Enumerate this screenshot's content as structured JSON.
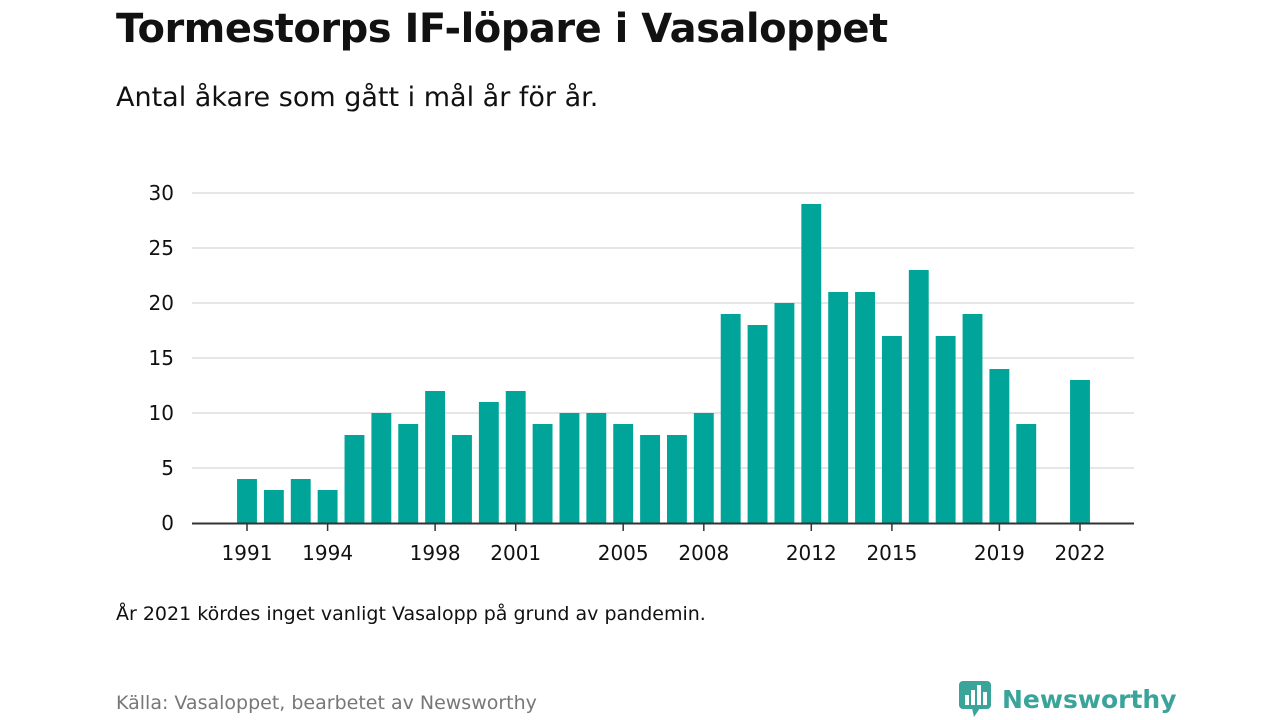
{
  "header": {
    "title": "Tormestorps IF-löpare i Vasaloppet",
    "subtitle": "Antal åkare som gått i mål år för år."
  },
  "footer": {
    "note": "År 2021 kördes inget vanligt Vasalopp på grund av pandemin.",
    "source": "Källa: Vasaloppet, bearbetet av Newsworthy",
    "brand": "Newsworthy",
    "brand_icon": "bar-chart-bubble-icon"
  },
  "colors": {
    "bar": "#00a499",
    "brand": "#3aa39a",
    "grid": "#dddddd",
    "axis": "#333333"
  },
  "chart_data": {
    "type": "bar",
    "title": "Tormestorps IF-löpare i Vasaloppet",
    "subtitle": "Antal åkare som gått i mål år för år.",
    "x": [
      1991,
      1992,
      1993,
      1994,
      1995,
      1996,
      1997,
      1998,
      1999,
      2000,
      2001,
      2002,
      2003,
      2004,
      2005,
      2006,
      2007,
      2008,
      2009,
      2010,
      2011,
      2012,
      2013,
      2014,
      2015,
      2016,
      2017,
      2018,
      2019,
      2020,
      2021,
      2022
    ],
    "values": [
      4,
      3,
      4,
      3,
      8,
      10,
      9,
      12,
      8,
      11,
      12,
      9,
      10,
      10,
      9,
      8,
      8,
      10,
      19,
      18,
      20,
      29,
      21,
      21,
      17,
      23,
      17,
      19,
      14,
      9,
      null,
      13
    ],
    "x_tick_labels": [
      1991,
      1994,
      1998,
      2001,
      2005,
      2008,
      2012,
      2015,
      2019,
      2022
    ],
    "y_ticks": [
      0,
      5,
      10,
      15,
      20,
      25,
      30
    ],
    "ylim": [
      0,
      30
    ],
    "xlabel": "",
    "ylabel": "",
    "grid": "horizontal",
    "legend": "none"
  }
}
